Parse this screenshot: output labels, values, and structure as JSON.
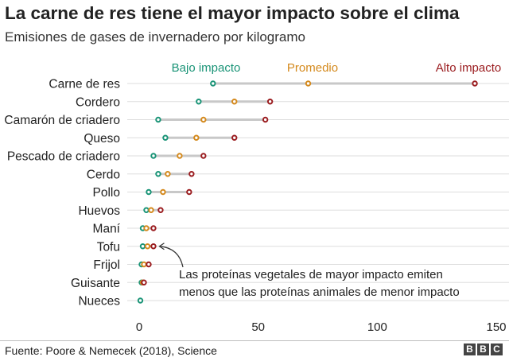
{
  "title": "La carne de res tiene el mayor impacto sobre el clima",
  "subtitle": "Emisiones de gases de invernadero por kilogramo",
  "source": "Fuente: Poore & Nemecek (2018), Science",
  "logo": {
    "letters": [
      "B",
      "B",
      "C"
    ]
  },
  "colors": {
    "low": "#1a9477",
    "avg": "#d4891c",
    "high": "#9b1d20",
    "connector": "#c8c8c8",
    "grid": "#dddddd",
    "text": "#222222"
  },
  "chart_data": {
    "type": "dot-range",
    "title": "La carne de res tiene el mayor impacto sobre el clima",
    "subtitle": "Emisiones de gases de invernadero por kilogramo",
    "xlim": [
      0,
      150
    ],
    "xticks": [
      0,
      50,
      100,
      150
    ],
    "legend": [
      "Bajo impacto",
      "Promedio",
      "Alto impacto"
    ],
    "series": [
      {
        "key": "low",
        "name": "Bajo impacto"
      },
      {
        "key": "avg",
        "name": "Promedio"
      },
      {
        "key": "high",
        "name": "Alto impacto"
      }
    ],
    "categories": [
      {
        "name": "Carne de res",
        "low": 31,
        "avg": 71,
        "high": 141
      },
      {
        "name": "Cordero",
        "low": 25,
        "avg": 40,
        "high": 55
      },
      {
        "name": "Camarón de criadero",
        "low": 8,
        "avg": 27,
        "high": 53
      },
      {
        "name": "Queso",
        "low": 11,
        "avg": 24,
        "high": 40
      },
      {
        "name": "Pescado de criadero",
        "low": 6,
        "avg": 17,
        "high": 27
      },
      {
        "name": "Cerdo",
        "low": 8,
        "avg": 12,
        "high": 22
      },
      {
        "name": "Pollo",
        "low": 4,
        "avg": 10,
        "high": 21
      },
      {
        "name": "Huevos",
        "low": 3,
        "avg": 5,
        "high": 9
      },
      {
        "name": "Maní",
        "low": 1.5,
        "avg": 3,
        "high": 6
      },
      {
        "name": "Tofu",
        "low": 1.5,
        "avg": 3.5,
        "high": 6
      },
      {
        "name": "Frijol",
        "low": 1,
        "avg": 2,
        "high": 4
      },
      {
        "name": "Guisante",
        "low": 1,
        "avg": 1.5,
        "high": 2
      },
      {
        "name": "Nueces",
        "low": 0.5,
        "avg": null,
        "high": null
      }
    ],
    "annotation": {
      "target": "Tofu",
      "lines": [
        "Las proteínas vegetales de mayor impacto emiten",
        "menos que las proteínas animales de menor impacto"
      ]
    }
  }
}
